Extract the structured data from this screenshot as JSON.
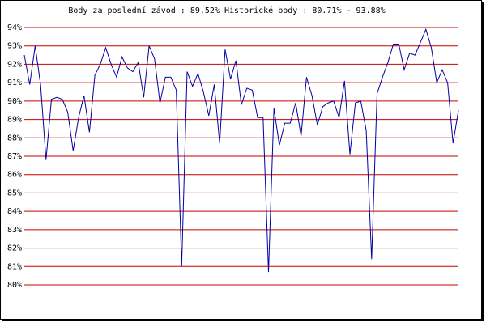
{
  "chart_data": {
    "type": "line",
    "title": "Body za poslední závod : 89.52%  Historické body : 80.71% - 93.88%",
    "series": [
      {
        "color": "#0000a0",
        "values": [
          92.5,
          90.9,
          93.0,
          90.9,
          86.8,
          90.1,
          90.2,
          90.1,
          89.4,
          87.3,
          89.1,
          90.3,
          88.3,
          91.4,
          92.0,
          92.9,
          92.0,
          91.3,
          92.4,
          91.8,
          91.6,
          92.1,
          90.2,
          93.0,
          92.3,
          89.9,
          91.3,
          91.3,
          90.6,
          81.0,
          91.6,
          90.8,
          91.5,
          90.5,
          89.2,
          90.9,
          87.7,
          92.8,
          91.2,
          92.2,
          89.8,
          90.7,
          90.6,
          89.1,
          89.1,
          80.7,
          89.6,
          87.6,
          88.8,
          88.8,
          89.9,
          88.1,
          91.3,
          90.3,
          88.7,
          89.7,
          89.9,
          90.0,
          89.1,
          91.1,
          87.1,
          89.9,
          90.0,
          88.4,
          81.4,
          90.4,
          91.3,
          92.1,
          93.1,
          93.1,
          91.7,
          92.6,
          92.5,
          93.2,
          93.9,
          92.9,
          91.0,
          91.7,
          91.0,
          87.7,
          89.5
        ]
      }
    ],
    "ylim": [
      80,
      94
    ],
    "yticks": [
      {
        "value": 80,
        "label": "80%"
      },
      {
        "value": 81,
        "label": "81%"
      },
      {
        "value": 82,
        "label": "82%"
      },
      {
        "value": 83,
        "label": "83%"
      },
      {
        "value": 84,
        "label": "84%"
      },
      {
        "value": 85,
        "label": "85%"
      },
      {
        "value": 86,
        "label": "86%"
      },
      {
        "value": 87,
        "label": "87%"
      },
      {
        "value": 88,
        "label": "88%"
      },
      {
        "value": 89,
        "label": "89%"
      },
      {
        "value": 90,
        "label": "90%"
      },
      {
        "value": 91,
        "label": "91%"
      },
      {
        "value": 92,
        "label": "92%"
      },
      {
        "value": 93,
        "label": "93%"
      },
      {
        "value": 94,
        "label": "94%"
      }
    ],
    "grid": true,
    "grid_color": "#cc0000"
  }
}
